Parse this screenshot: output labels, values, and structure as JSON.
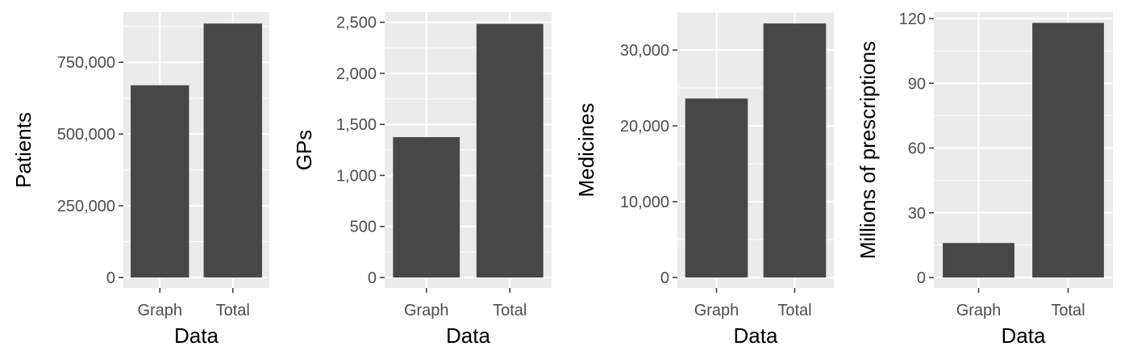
{
  "colors": {
    "panel_background": "#ebebeb",
    "grid": "#ffffff",
    "bar_fill": "#474747",
    "tick_text": "#4d4d4d",
    "axis_title": "#000000"
  },
  "chart_data": [
    {
      "type": "bar",
      "categories": [
        "Graph",
        "Total"
      ],
      "values": [
        670000,
        885000
      ],
      "xlabel": "Data",
      "ylabel": "Patients",
      "ylim": [
        0,
        925000
      ],
      "yticks": [
        0,
        250000,
        500000,
        750000
      ],
      "ytick_labels": [
        "0",
        "250,000",
        "500,000",
        "750,000"
      ],
      "grid": true
    },
    {
      "type": "bar",
      "categories": [
        "Graph",
        "Total"
      ],
      "values": [
        1375,
        2485
      ],
      "xlabel": "Data",
      "ylabel": "GPs",
      "ylim": [
        0,
        2600
      ],
      "yticks": [
        0,
        500,
        1000,
        1500,
        2000,
        2500
      ],
      "ytick_labels": [
        "0",
        "500",
        "1,000",
        "1,500",
        "2,000",
        "2,500"
      ],
      "grid": true
    },
    {
      "type": "bar",
      "categories": [
        "Graph",
        "Total"
      ],
      "values": [
        23600,
        33500
      ],
      "xlabel": "Data",
      "ylabel": "Medicines",
      "ylim": [
        0,
        35000
      ],
      "yticks": [
        0,
        10000,
        20000,
        30000
      ],
      "ytick_labels": [
        "0",
        "10,000",
        "20,000",
        "30,000"
      ],
      "grid": true
    },
    {
      "type": "bar",
      "categories": [
        "Graph",
        "Total"
      ],
      "values": [
        16,
        118
      ],
      "xlabel": "Data",
      "ylabel": "Millions of prescriptions",
      "ylim": [
        0,
        123
      ],
      "yticks": [
        0,
        30,
        60,
        90,
        120
      ],
      "ytick_labels": [
        "0",
        "30",
        "60",
        "90",
        "120"
      ],
      "grid": true
    }
  ]
}
